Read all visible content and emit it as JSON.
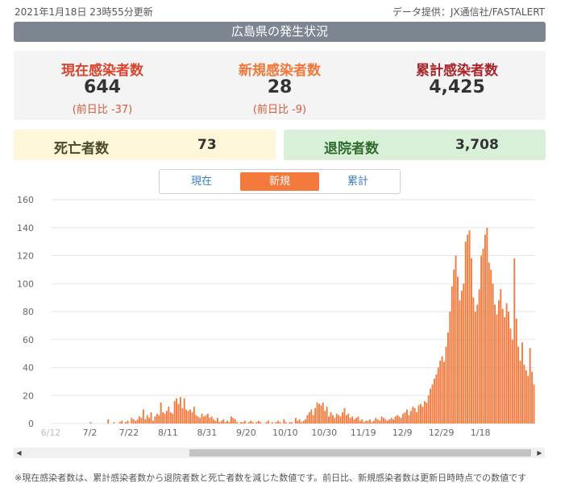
{
  "header": {
    "updated": "2021年1月18日 23時55分更新",
    "source": "データ提供：JX通信社/FASTALERT",
    "title": "広島県の発生状況"
  },
  "stats": {
    "current": {
      "label": "現在感染者数",
      "value": "644",
      "diff": "(前日比 -37)"
    },
    "new": {
      "label": "新規感染者数",
      "value": "28",
      "diff": "(前日比 -9)"
    },
    "total": {
      "label": "累計感染者数",
      "value": "4,425"
    }
  },
  "panels": {
    "deaths": {
      "label": "死亡者数",
      "value": "73"
    },
    "recovered": {
      "label": "退院者数",
      "value": "3,708"
    }
  },
  "tabs": {
    "current": "現在",
    "new": "新規",
    "total": "累計",
    "active": "new"
  },
  "colors": {
    "bar": "#f3793c",
    "accent_red": "#d9442d",
    "deaths_bg": "#fdf6d8",
    "recovered_bg": "#d8f0d8"
  },
  "chart_data": {
    "type": "bar",
    "title": "",
    "xlabel": "",
    "ylabel": "",
    "ylim": [
      0,
      160
    ],
    "yticks": [
      0,
      20,
      40,
      60,
      80,
      100,
      120,
      140,
      160
    ],
    "xtick_labels": [
      "6/12",
      "7/2",
      "7/22",
      "8/11",
      "8/31",
      "9/20",
      "10/10",
      "10/30",
      "11/19",
      "12/9",
      "12/29",
      "1/18"
    ],
    "start_date": "2020-06-12",
    "series": [
      {
        "values": [
          0,
          0,
          0,
          0,
          0,
          0,
          0,
          0,
          0,
          0,
          0,
          0,
          0,
          0,
          0,
          0,
          0,
          0,
          0,
          0,
          1,
          0,
          0,
          0,
          0,
          0,
          0,
          0,
          0,
          3,
          0,
          0,
          1,
          0,
          0,
          1,
          2,
          0,
          1,
          2,
          0,
          4,
          3,
          2,
          3,
          5,
          4,
          10,
          3,
          6,
          4,
          8,
          2,
          5,
          7,
          6,
          15,
          8,
          7,
          9,
          12,
          8,
          7,
          16,
          18,
          14,
          19,
          11,
          18,
          10,
          9,
          10,
          8,
          12,
          6,
          5,
          4,
          7,
          5,
          6,
          7,
          4,
          5,
          3,
          2,
          4,
          1,
          2,
          3,
          1,
          2,
          1,
          5,
          4,
          3,
          1,
          0,
          1,
          1,
          2,
          0,
          1,
          2,
          1,
          0,
          1,
          2,
          1,
          0,
          0,
          1,
          2,
          0,
          1,
          0,
          1,
          2,
          1,
          0,
          3,
          1,
          0,
          1,
          1,
          0,
          4,
          2,
          3,
          1,
          2,
          3,
          6,
          8,
          10,
          6,
          11,
          15,
          14,
          13,
          15,
          9,
          12,
          5,
          8,
          6,
          4,
          7,
          6,
          5,
          8,
          11,
          6,
          7,
          4,
          5,
          3,
          4,
          5,
          2,
          3,
          1,
          2,
          2,
          3,
          1,
          2,
          4,
          3,
          2,
          5,
          4,
          3,
          2,
          3,
          4,
          3,
          5,
          6,
          5,
          4,
          7,
          8,
          10,
          6,
          9,
          12,
          11,
          8,
          13,
          14,
          12,
          16,
          15,
          20,
          25,
          28,
          32,
          35,
          40,
          45,
          48,
          44,
          55,
          65,
          80,
          98,
          110,
          120,
          105,
          88,
          95,
          100,
          130,
          135,
          138,
          118,
          90,
          80,
          85,
          96,
          120,
          125,
          135,
          140,
          115,
          110,
          100,
          85,
          78,
          88,
          96,
          82,
          76,
          86,
          80,
          68,
          60,
          118,
          75,
          55,
          45,
          58,
          42,
          38,
          34,
          54,
          37,
          28
        ]
      }
    ]
  }
}
